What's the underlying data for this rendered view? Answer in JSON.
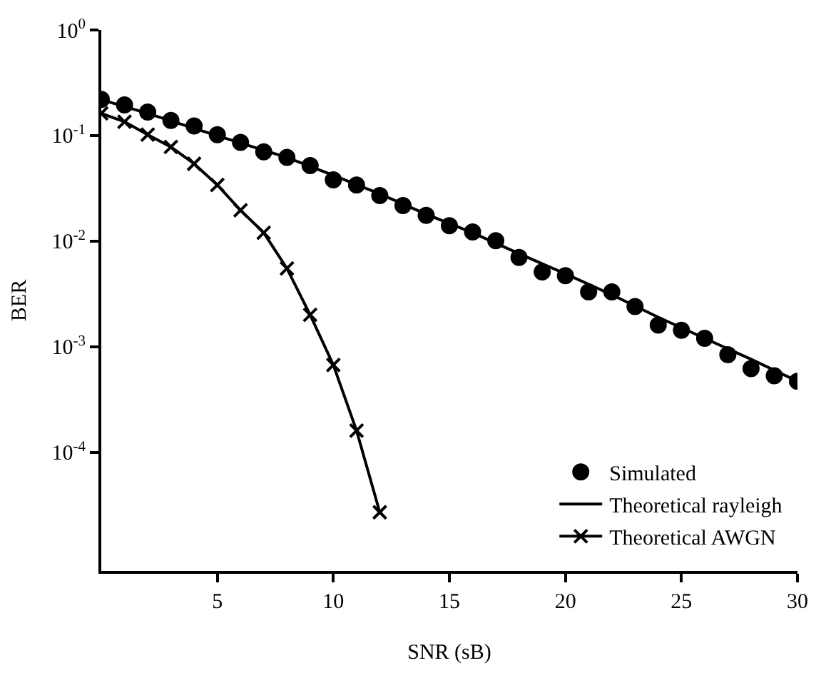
{
  "chart_data": {
    "type": "line",
    "xlabel": "SNR (sB)",
    "ylabel": "BER",
    "log": "y",
    "legend": "bottom right",
    "xlim": [
      0,
      30
    ],
    "xticks": [
      5,
      10,
      15,
      20,
      25,
      30
    ],
    "ylim": [
      7.5e-06,
      1
    ],
    "yticks": [
      {
        "value": 1,
        "label": "10$^{0}$"
      },
      {
        "value": 0.1,
        "label": "10$^{-1}$"
      },
      {
        "value": 0.01,
        "label": "10$^{-2}$"
      },
      {
        "value": 0.001,
        "label": "10$^{-3}$"
      },
      {
        "value": 0.0001,
        "label": "10$^{-4}$"
      }
    ],
    "series": [
      {
        "name": "Simulated",
        "type": "scatter",
        "marker": "circle",
        "color": "#000000",
        "x": [
          0,
          1,
          2,
          3,
          4,
          5,
          6,
          7,
          8,
          9,
          10,
          11,
          12,
          13,
          14,
          15,
          16,
          17,
          18,
          19,
          20,
          21,
          22,
          23,
          24,
          25,
          26,
          27,
          28,
          29,
          30
        ],
        "values": [
          0.22,
          0.195,
          0.167,
          0.139,
          0.123,
          0.102,
          0.086,
          0.07,
          0.062,
          0.052,
          0.038,
          0.034,
          0.027,
          0.0217,
          0.0175,
          0.014,
          0.0122,
          0.0101,
          0.007,
          0.0051,
          0.0047,
          0.0033,
          0.0033,
          0.0024,
          0.0016,
          0.00143,
          0.0012,
          0.00084,
          0.00062,
          0.00053,
          0.00047
        ]
      },
      {
        "name": "Theoretical rayleigh",
        "marker": "none",
        "line_style": "solid",
        "color": "#000000",
        "x": [
          0,
          2,
          4,
          6,
          8,
          10,
          12,
          14,
          16,
          18,
          20,
          22,
          24,
          26,
          28,
          30
        ],
        "values": [
          0.219,
          0.162,
          0.117,
          0.085,
          0.062,
          0.042,
          0.028,
          0.018,
          0.012,
          0.0076,
          0.0049,
          0.0031,
          0.0019,
          0.0012,
          0.00076,
          0.00047
        ]
      },
      {
        "name": "Theoretical AWGN",
        "marker": "cross",
        "line_style": "solid",
        "color": "#000000",
        "x": [
          0,
          1,
          2,
          3,
          4,
          5,
          6,
          7,
          8,
          9,
          10,
          11,
          12
        ],
        "values": [
          0.162,
          0.135,
          0.102,
          0.078,
          0.054,
          0.034,
          0.0196,
          0.012,
          0.0055,
          0.002,
          0.00067,
          0.00016,
          2.7e-05
        ]
      }
    ]
  }
}
